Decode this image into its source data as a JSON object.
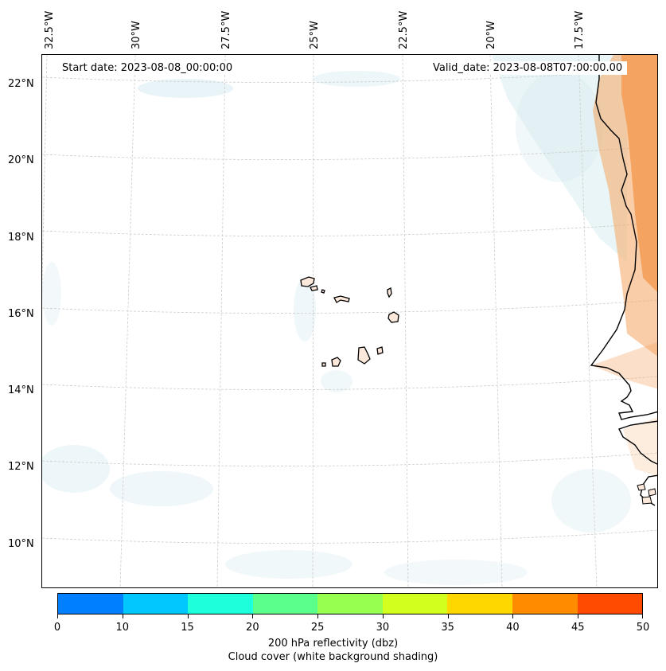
{
  "map": {
    "top_labels": [
      "32.5°W",
      "30°W",
      "27.5°W",
      "25°W",
      "22.5°W",
      "20°W",
      "17.5°W"
    ],
    "left_labels": [
      "22°N",
      "20°N",
      "18°N",
      "16°N",
      "14°N",
      "12°N",
      "10°N"
    ],
    "start_date": "Start date: 2023-08-08_00:00:00",
    "valid_date": "Valid_date: 2023-08-08T07:00:00.00"
  },
  "colorbar": {
    "colors": [
      "#0080ff",
      "#00c8ff",
      "#1effdc",
      "#5aff8c",
      "#96ff50",
      "#d2ff1e",
      "#ffd700",
      "#ff8c00",
      "#ff4b00"
    ],
    "ticks": [
      "0",
      "10",
      "15",
      "20",
      "25",
      "30",
      "35",
      "40",
      "45",
      "50"
    ],
    "label": "200 hPa reflectivity (dbz)",
    "sublabel": "Cloud cover (white background shading)"
  },
  "colors": {
    "land_warm": "#f4a460",
    "cloud": "#d6ebf2",
    "grid": "#cccccc",
    "coast": "#000000"
  }
}
